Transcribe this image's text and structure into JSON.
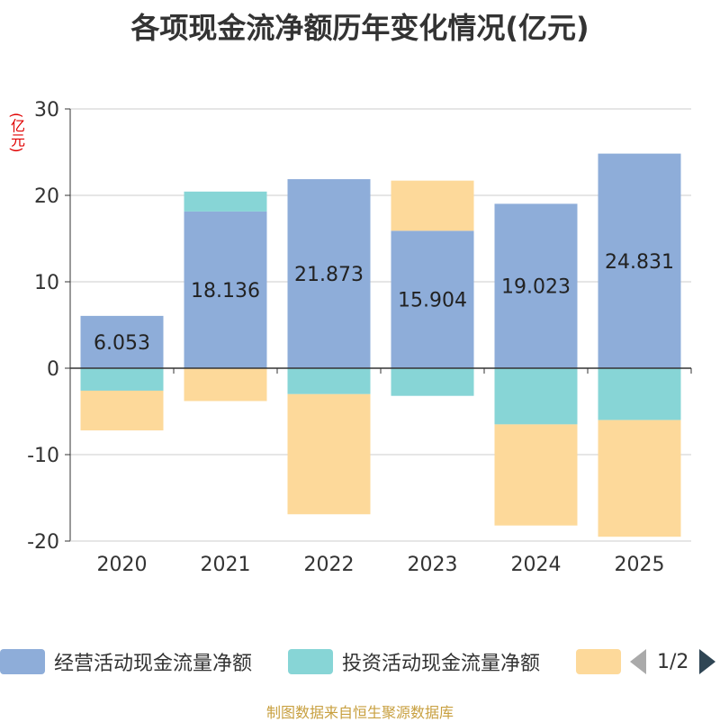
{
  "chart_data": {
    "type": "bar",
    "stacked": true,
    "title": "各项现金流净额历年变化情况(亿元)",
    "ylabel": "(亿元)",
    "ylim": [
      -20,
      30
    ],
    "yticks": [
      30,
      20,
      10,
      0,
      -10,
      -20
    ],
    "categories": [
      "2020",
      "2021",
      "2022",
      "2023",
      "2024",
      "2025"
    ],
    "series": [
      {
        "name": "经营活动现金流量净额",
        "color": "#8eadd9",
        "values": [
          6.053,
          18.136,
          21.873,
          15.904,
          19.023,
          24.831
        ],
        "labels": [
          "6.053",
          "18.136",
          "21.873",
          "15.904",
          "19.023",
          "24.831"
        ]
      },
      {
        "name": "投资活动现金流量净额",
        "color": "#87d5d6",
        "values": [
          -2.6,
          2.3,
          -3.0,
          -3.2,
          -6.5,
          -6.0
        ]
      },
      {
        "name": "",
        "color": "#fdd99a",
        "values": [
          -4.6,
          -3.8,
          -13.9,
          5.8,
          -11.7,
          -13.5
        ]
      }
    ],
    "legend_page": "1/2",
    "source": "制图数据来自恒生聚源数据库"
  }
}
